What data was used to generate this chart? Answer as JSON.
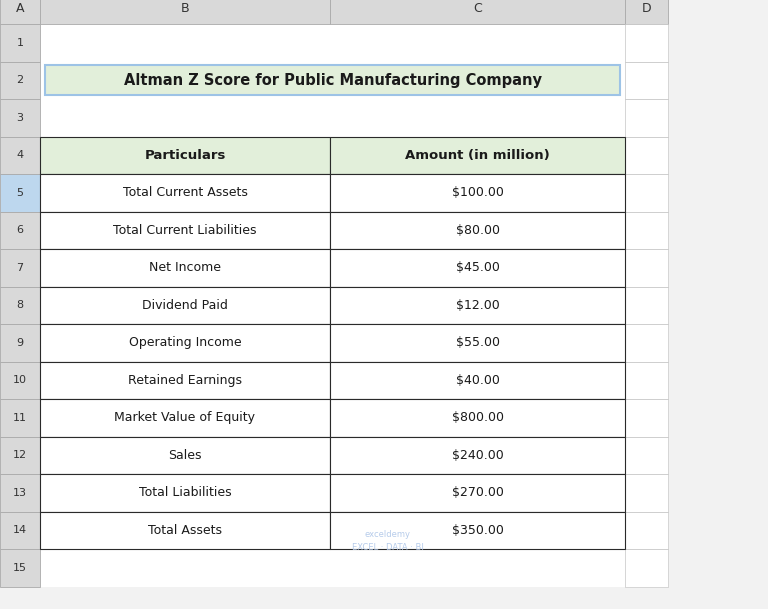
{
  "title": "Altman Z Score for Public Manufacturing Company",
  "title_bg_color": "#e2efda",
  "title_border_color": "#9dc3e6",
  "header_bg_color": "#e2efda",
  "header_border_color": "#4a4a4a",
  "cell_bg_color": "#ffffff",
  "cell_border_color": "#2a2a2a",
  "col_headers": [
    "Particulars",
    "Amount (in million)"
  ],
  "rows": [
    [
      "Total Current Assets",
      "$100.00"
    ],
    [
      "Total Current Liabilities",
      "$80.00"
    ],
    [
      "Net Income",
      "$45.00"
    ],
    [
      "Dividend Paid",
      "$12.00"
    ],
    [
      "Operating Income",
      "$55.00"
    ],
    [
      "Retained Earnings",
      "$40.00"
    ],
    [
      "Market Value of Equity",
      "$800.00"
    ],
    [
      "Sales",
      "$240.00"
    ],
    [
      "Total Liabilities",
      "$270.00"
    ],
    [
      "Total Assets",
      "$350.00"
    ]
  ],
  "excel_bg": "#f2f2f2",
  "excel_header_bg": "#d9d9d9",
  "col_labels": [
    "A",
    "B",
    "C",
    "D"
  ],
  "row_labels": [
    "1",
    "2",
    "3",
    "4",
    "5",
    "6",
    "7",
    "8",
    "9",
    "10",
    "11",
    "12",
    "13",
    "14",
    "15"
  ],
  "watermark_text": "exceldemy\nEXCEL · DATA · BI",
  "watermark_color": "#aec6e8",
  "highlighted_row_idx": 4
}
